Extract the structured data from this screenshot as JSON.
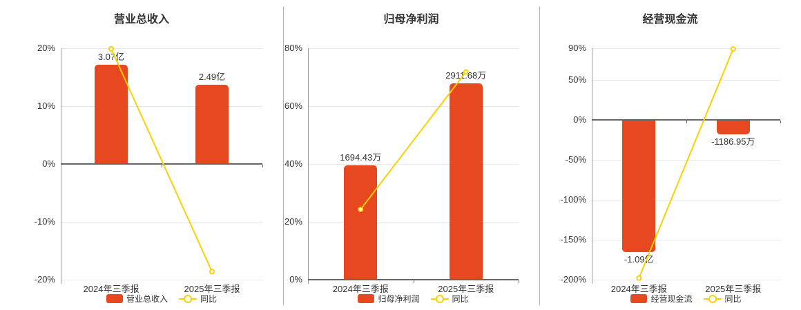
{
  "colors": {
    "bar": "#e8481f",
    "line": "#fcd000",
    "grid": "#e4e8f1",
    "zero_axis": "#666666",
    "axis_line": "#999999",
    "text": "#333333",
    "separator": "#b3b3b3",
    "marker_fill": "#ffffff",
    "background": "#ffffff"
  },
  "chart_data": [
    {
      "type": "bar+line",
      "title": "营业总收入",
      "categories": [
        "2024年三季报",
        "2025年三季报"
      ],
      "bar_series": {
        "name": "营业总收入",
        "value_labels": [
          "3.07亿",
          "2.49亿"
        ],
        "display_pct": [
          17.1,
          13.7
        ],
        "label_position": "above"
      },
      "line_series": {
        "name": "同比",
        "values_pct": [
          19.9,
          -18.6
        ]
      },
      "y_axis": {
        "ticks": [
          "20%",
          "10%",
          "0%",
          "-10%",
          "-20%"
        ],
        "tick_values": [
          20,
          10,
          0,
          -10,
          -20
        ],
        "ymin": -20,
        "ymax": 20
      },
      "legend_position": "bottom",
      "grid": true
    },
    {
      "type": "bar+line",
      "title": "归母净利润",
      "categories": [
        "2024年三季报",
        "2025年三季报"
      ],
      "bar_series": {
        "name": "归母净利润",
        "value_labels": [
          "1694.43万",
          "2911.68万"
        ],
        "display_pct": [
          39.5,
          67.9
        ],
        "label_position": "above"
      },
      "line_series": {
        "name": "同比",
        "values_pct": [
          24.3,
          71.8
        ]
      },
      "y_axis": {
        "ticks": [
          "80%",
          "60%",
          "40%",
          "20%",
          "0%"
        ],
        "tick_values": [
          80,
          60,
          40,
          20,
          0
        ],
        "ymin": 0,
        "ymax": 80
      },
      "legend_position": "bottom",
      "grid": true
    },
    {
      "type": "bar+line",
      "title": "经营现金流",
      "categories": [
        "2024年三季报",
        "2025年三季报"
      ],
      "bar_series": {
        "name": "经营现金流",
        "value_labels": [
          "-1.09亿",
          "-1186.95万"
        ],
        "display_pct": [
          -165.2,
          -18.0
        ],
        "label_position": "below"
      },
      "line_series": {
        "name": "同比",
        "values_pct": [
          -198.0,
          89.1
        ]
      },
      "y_axis": {
        "ticks": [
          "90%",
          "50%",
          "0%",
          "-50%",
          "-100%",
          "-150%",
          "-200%"
        ],
        "tick_values": [
          90,
          50,
          0,
          -50,
          -100,
          -150,
          -200
        ],
        "ymin": -200,
        "ymax": 90
      },
      "legend_position": "bottom",
      "grid": true
    }
  ]
}
